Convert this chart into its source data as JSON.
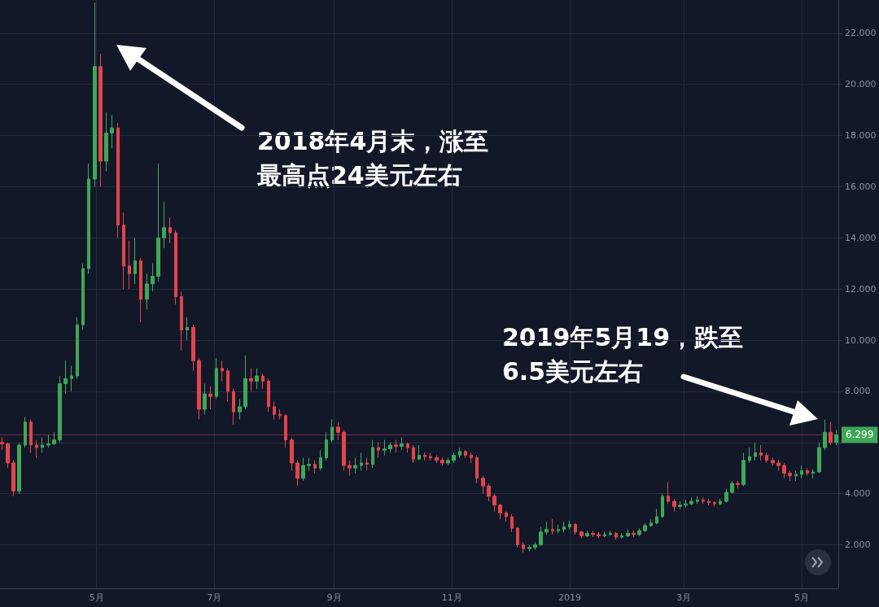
{
  "chart_data": {
    "type": "candlestick",
    "x": [
      "2018-03-13",
      "2018-03-16",
      "2018-03-19",
      "2018-03-22",
      "2018-03-25",
      "2018-03-28",
      "2018-03-31",
      "2018-04-03",
      "2018-04-06",
      "2018-04-09",
      "2018-04-12",
      "2018-04-15",
      "2018-04-18",
      "2018-04-21",
      "2018-04-24",
      "2018-04-27",
      "2018-04-30",
      "2018-05-03",
      "2018-05-06",
      "2018-05-09",
      "2018-05-12",
      "2018-05-15",
      "2018-05-18",
      "2018-05-21",
      "2018-05-24",
      "2018-05-27",
      "2018-05-30",
      "2018-06-02",
      "2018-06-05",
      "2018-06-08",
      "2018-06-11",
      "2018-06-14",
      "2018-06-17",
      "2018-06-20",
      "2018-06-23",
      "2018-06-26",
      "2018-06-29",
      "2018-07-02",
      "2018-07-05",
      "2018-07-08",
      "2018-07-11",
      "2018-07-14",
      "2018-07-17",
      "2018-07-20",
      "2018-07-23",
      "2018-07-26",
      "2018-07-29",
      "2018-08-01",
      "2018-08-04",
      "2018-08-07",
      "2018-08-10",
      "2018-08-13",
      "2018-08-16",
      "2018-08-19",
      "2018-08-22",
      "2018-08-25",
      "2018-08-28",
      "2018-08-31",
      "2018-09-03",
      "2018-09-06",
      "2018-09-09",
      "2018-09-12",
      "2018-09-15",
      "2018-09-18",
      "2018-09-21",
      "2018-09-24",
      "2018-09-27",
      "2018-09-30",
      "2018-10-03",
      "2018-10-06",
      "2018-10-09",
      "2018-10-12",
      "2018-10-15",
      "2018-10-18",
      "2018-10-21",
      "2018-10-24",
      "2018-10-27",
      "2018-10-30",
      "2018-11-02",
      "2018-11-05",
      "2018-11-08",
      "2018-11-11",
      "2018-11-14",
      "2018-11-17",
      "2018-11-20",
      "2018-11-23",
      "2018-11-26",
      "2018-11-29",
      "2018-12-02",
      "2018-12-05",
      "2018-12-08",
      "2018-12-11",
      "2018-12-14",
      "2018-12-17",
      "2018-12-20",
      "2018-12-23",
      "2018-12-26",
      "2018-12-29",
      "2019-01-01",
      "2019-01-04",
      "2019-01-07",
      "2019-01-10",
      "2019-01-13",
      "2019-01-16",
      "2019-01-19",
      "2019-01-22",
      "2019-01-25",
      "2019-01-28",
      "2019-01-31",
      "2019-02-03",
      "2019-02-06",
      "2019-02-09",
      "2019-02-12",
      "2019-02-15",
      "2019-02-18",
      "2019-02-21",
      "2019-02-24",
      "2019-02-27",
      "2019-03-02",
      "2019-03-05",
      "2019-03-08",
      "2019-03-11",
      "2019-03-14",
      "2019-03-17",
      "2019-03-20",
      "2019-03-23",
      "2019-03-26",
      "2019-03-29",
      "2019-04-01",
      "2019-04-04",
      "2019-04-07",
      "2019-04-10",
      "2019-04-13",
      "2019-04-16",
      "2019-04-19",
      "2019-04-22",
      "2019-04-25",
      "2019-04-28",
      "2019-05-01",
      "2019-05-04",
      "2019-05-07",
      "2019-05-10",
      "2019-05-13",
      "2019-05-16",
      "2019-05-19"
    ],
    "ohlc": [
      [
        6.0,
        6.2,
        5.7,
        5.95
      ],
      [
        5.95,
        6.0,
        5.0,
        5.2
      ],
      [
        5.2,
        5.3,
        3.9,
        4.1
      ],
      [
        4.1,
        6.0,
        4.0,
        5.9
      ],
      [
        5.9,
        7.0,
        5.8,
        6.8
      ],
      [
        6.8,
        6.9,
        5.6,
        5.9
      ],
      [
        5.9,
        6.1,
        5.4,
        5.8
      ],
      [
        5.8,
        6.2,
        5.6,
        5.9
      ],
      [
        5.9,
        6.3,
        5.8,
        5.95
      ],
      [
        5.95,
        6.4,
        5.9,
        6.1
      ],
      [
        6.1,
        8.6,
        6.0,
        8.3
      ],
      [
        8.3,
        9.2,
        7.9,
        8.5
      ],
      [
        8.5,
        9.0,
        8.0,
        8.6
      ],
      [
        8.6,
        10.9,
        8.5,
        10.6
      ],
      [
        10.6,
        13.0,
        10.4,
        12.8
      ],
      [
        12.8,
        16.9,
        12.6,
        16.3
      ],
      [
        16.3,
        23.2,
        16.0,
        20.7
      ],
      [
        20.7,
        21.2,
        16.0,
        17.0
      ],
      [
        17.0,
        18.9,
        16.6,
        18.1
      ],
      [
        18.1,
        18.8,
        17.5,
        18.3
      ],
      [
        18.3,
        18.5,
        14.0,
        14.5
      ],
      [
        14.5,
        15.0,
        12.0,
        12.9
      ],
      [
        12.9,
        13.9,
        12.0,
        12.6
      ],
      [
        12.6,
        14.0,
        12.2,
        13.1
      ],
      [
        13.1,
        13.2,
        10.7,
        11.6
      ],
      [
        11.6,
        12.6,
        11.2,
        12.2
      ],
      [
        12.2,
        13.0,
        11.9,
        12.5
      ],
      [
        12.5,
        16.9,
        12.3,
        14.0
      ],
      [
        14.0,
        15.4,
        13.6,
        14.4
      ],
      [
        14.4,
        14.8,
        13.8,
        14.2
      ],
      [
        14.2,
        14.3,
        11.4,
        11.7
      ],
      [
        11.7,
        11.9,
        9.6,
        10.4
      ],
      [
        10.4,
        10.9,
        10.0,
        10.5
      ],
      [
        10.5,
        10.6,
        8.8,
        9.2
      ],
      [
        9.2,
        9.3,
        6.9,
        7.3
      ],
      [
        7.3,
        8.3,
        7.1,
        7.9
      ],
      [
        7.9,
        8.2,
        7.3,
        7.8
      ],
      [
        7.8,
        9.3,
        7.7,
        8.9
      ],
      [
        8.9,
        9.2,
        8.4,
        8.8
      ],
      [
        8.8,
        8.9,
        7.6,
        8.0
      ],
      [
        8.0,
        8.1,
        6.7,
        7.2
      ],
      [
        7.2,
        7.7,
        6.9,
        7.4
      ],
      [
        7.4,
        9.4,
        7.3,
        8.5
      ],
      [
        8.5,
        8.9,
        8.0,
        8.4
      ],
      [
        8.4,
        8.9,
        8.1,
        8.6
      ],
      [
        8.6,
        8.7,
        8.1,
        8.4
      ],
      [
        8.4,
        8.5,
        7.2,
        7.4
      ],
      [
        7.4,
        7.6,
        6.9,
        7.1
      ],
      [
        7.1,
        7.3,
        6.9,
        7.05
      ],
      [
        7.05,
        7.1,
        5.8,
        6.1
      ],
      [
        6.1,
        6.2,
        4.9,
        5.2
      ],
      [
        5.2,
        5.3,
        4.3,
        4.6
      ],
      [
        4.6,
        5.4,
        4.5,
        5.1
      ],
      [
        5.1,
        5.4,
        4.9,
        5.15
      ],
      [
        5.15,
        5.3,
        4.8,
        5.0
      ],
      [
        5.0,
        5.7,
        4.9,
        5.4
      ],
      [
        5.4,
        6.4,
        5.3,
        6.1
      ],
      [
        6.1,
        6.9,
        6.0,
        6.6
      ],
      [
        6.6,
        6.8,
        6.1,
        6.4
      ],
      [
        6.4,
        6.5,
        4.9,
        5.1
      ],
      [
        5.1,
        5.3,
        4.7,
        5.0
      ],
      [
        5.0,
        5.4,
        4.8,
        5.1
      ],
      [
        5.1,
        5.6,
        4.9,
        5.2
      ],
      [
        5.2,
        5.4,
        4.9,
        5.15
      ],
      [
        5.15,
        6.1,
        5.0,
        5.8
      ],
      [
        5.8,
        6.0,
        5.4,
        5.7
      ],
      [
        5.7,
        6.1,
        5.5,
        5.75
      ],
      [
        5.75,
        6.0,
        5.6,
        5.9
      ],
      [
        5.9,
        6.1,
        5.6,
        5.85
      ],
      [
        5.85,
        6.2,
        5.7,
        5.95
      ],
      [
        5.95,
        6.0,
        5.6,
        5.8
      ],
      [
        5.8,
        5.9,
        5.2,
        5.35
      ],
      [
        5.35,
        5.9,
        5.3,
        5.5
      ],
      [
        5.5,
        5.6,
        5.3,
        5.45
      ],
      [
        5.45,
        5.6,
        5.3,
        5.4
      ],
      [
        5.4,
        5.5,
        5.2,
        5.3
      ],
      [
        5.3,
        5.4,
        5.1,
        5.2
      ],
      [
        5.2,
        5.4,
        5.1,
        5.3
      ],
      [
        5.3,
        5.6,
        5.2,
        5.5
      ],
      [
        5.5,
        5.8,
        5.4,
        5.65
      ],
      [
        5.65,
        5.7,
        5.4,
        5.5
      ],
      [
        5.5,
        5.6,
        5.2,
        5.4
      ],
      [
        5.4,
        5.5,
        4.4,
        4.6
      ],
      [
        4.6,
        4.7,
        4.0,
        4.3
      ],
      [
        4.3,
        4.4,
        3.7,
        3.9
      ],
      [
        3.9,
        4.0,
        3.3,
        3.55
      ],
      [
        3.55,
        3.6,
        3.0,
        3.25
      ],
      [
        3.25,
        3.3,
        2.9,
        3.1
      ],
      [
        3.1,
        3.2,
        2.5,
        2.65
      ],
      [
        2.65,
        2.7,
        1.9,
        2.0
      ],
      [
        2.0,
        2.1,
        1.7,
        1.85
      ],
      [
        1.85,
        2.0,
        1.75,
        1.9
      ],
      [
        1.9,
        2.1,
        1.8,
        2.0
      ],
      [
        2.0,
        2.7,
        1.95,
        2.5
      ],
      [
        2.5,
        2.9,
        2.4,
        2.6
      ],
      [
        2.6,
        3.0,
        2.4,
        2.55
      ],
      [
        2.55,
        2.8,
        2.45,
        2.6
      ],
      [
        2.6,
        2.9,
        2.5,
        2.7
      ],
      [
        2.7,
        2.95,
        2.6,
        2.8
      ],
      [
        2.8,
        2.85,
        2.4,
        2.5
      ],
      [
        2.5,
        2.55,
        2.25,
        2.35
      ],
      [
        2.35,
        2.55,
        2.3,
        2.45
      ],
      [
        2.45,
        2.55,
        2.3,
        2.4
      ],
      [
        2.4,
        2.5,
        2.25,
        2.35
      ],
      [
        2.35,
        2.5,
        2.3,
        2.4
      ],
      [
        2.4,
        2.55,
        2.35,
        2.45
      ],
      [
        2.45,
        2.5,
        2.2,
        2.3
      ],
      [
        2.3,
        2.45,
        2.25,
        2.35
      ],
      [
        2.35,
        2.6,
        2.3,
        2.45
      ],
      [
        2.45,
        2.55,
        2.3,
        2.4
      ],
      [
        2.4,
        2.65,
        2.35,
        2.55
      ],
      [
        2.55,
        2.85,
        2.5,
        2.75
      ],
      [
        2.75,
        3.0,
        2.7,
        2.85
      ],
      [
        2.85,
        3.4,
        2.8,
        3.1
      ],
      [
        3.1,
        4.0,
        3.05,
        3.9
      ],
      [
        3.9,
        4.45,
        3.6,
        3.7
      ],
      [
        3.7,
        3.8,
        3.3,
        3.5
      ],
      [
        3.5,
        3.7,
        3.4,
        3.55
      ],
      [
        3.55,
        3.75,
        3.45,
        3.6
      ],
      [
        3.6,
        3.85,
        3.55,
        3.7
      ],
      [
        3.7,
        3.9,
        3.6,
        3.75
      ],
      [
        3.75,
        3.85,
        3.6,
        3.7
      ],
      [
        3.7,
        3.8,
        3.55,
        3.65
      ],
      [
        3.65,
        3.7,
        3.5,
        3.6
      ],
      [
        3.6,
        3.8,
        3.55,
        3.7
      ],
      [
        3.7,
        4.2,
        3.65,
        4.05
      ],
      [
        4.05,
        4.5,
        4.0,
        4.4
      ],
      [
        4.4,
        4.5,
        4.2,
        4.35
      ],
      [
        4.35,
        5.6,
        4.3,
        5.3
      ],
      [
        5.3,
        5.8,
        5.2,
        5.45
      ],
      [
        5.45,
        6.0,
        5.3,
        5.6
      ],
      [
        5.6,
        5.9,
        5.3,
        5.5
      ],
      [
        5.5,
        5.6,
        5.2,
        5.3
      ],
      [
        5.3,
        5.4,
        5.1,
        5.2
      ],
      [
        5.2,
        5.3,
        4.9,
        5.1
      ],
      [
        5.1,
        5.2,
        4.6,
        4.8
      ],
      [
        4.8,
        4.9,
        4.5,
        4.7
      ],
      [
        4.7,
        4.9,
        4.5,
        4.75
      ],
      [
        4.75,
        5.1,
        4.6,
        4.9
      ],
      [
        4.9,
        5.0,
        4.7,
        4.8
      ],
      [
        4.8,
        4.95,
        4.6,
        4.85
      ],
      [
        4.85,
        6.0,
        4.8,
        5.8
      ],
      [
        5.8,
        6.9,
        5.7,
        6.4
      ],
      [
        6.4,
        6.8,
        5.9,
        6.0
      ],
      [
        6.0,
        6.5,
        5.9,
        6.3
      ]
    ],
    "colors": [
      "#e2454b",
      "#e2454b",
      "#e2454b",
      "#3fa758",
      "#3fa758",
      "#e2454b",
      "#e2454b",
      "#3fa758",
      "#3fa758",
      "#3fa758",
      "#3fa758",
      "#3fa758",
      "#3fa758",
      "#3fa758",
      "#3fa758",
      "#3fa758",
      "#3fa758",
      "#e2454b",
      "#3fa758",
      "#3fa758",
      "#e2454b",
      "#e2454b",
      "#e2454b",
      "#3fa758",
      "#e2454b",
      "#3fa758",
      "#3fa758",
      "#3fa758",
      "#3fa758",
      "#e2454b",
      "#e2454b",
      "#e2454b",
      "#3fa758",
      "#e2454b",
      "#e2454b",
      "#3fa758",
      "#e2454b",
      "#3fa758",
      "#e2454b",
      "#e2454b",
      "#e2454b",
      "#3fa758",
      "#3fa758",
      "#e2454b",
      "#3fa758",
      "#e2454b",
      "#e2454b",
      "#e2454b",
      "#e2454b",
      "#e2454b",
      "#e2454b",
      "#e2454b",
      "#3fa758",
      "#3fa758",
      "#e2454b",
      "#3fa758",
      "#3fa758",
      "#3fa758",
      "#e2454b",
      "#e2454b",
      "#e2454b",
      "#3fa758",
      "#3fa758",
      "#e2454b",
      "#3fa758",
      "#e2454b",
      "#3fa758",
      "#3fa758",
      "#e2454b",
      "#3fa758",
      "#e2454b",
      "#e2454b",
      "#3fa758",
      "#e2454b",
      "#e2454b",
      "#e2454b",
      "#e2454b",
      "#3fa758",
      "#3fa758",
      "#3fa758",
      "#e2454b",
      "#e2454b",
      "#e2454b",
      "#e2454b",
      "#e2454b",
      "#e2454b",
      "#e2454b",
      "#e2454b",
      "#e2454b",
      "#e2454b",
      "#e2454b",
      "#3fa758",
      "#3fa758",
      "#3fa758",
      "#3fa758",
      "#e2454b",
      "#3fa758",
      "#3fa758",
      "#3fa758",
      "#e2454b",
      "#e2454b",
      "#3fa758",
      "#e2454b",
      "#e2454b",
      "#3fa758",
      "#3fa758",
      "#e2454b",
      "#3fa758",
      "#3fa758",
      "#e2454b",
      "#3fa758",
      "#3fa758",
      "#3fa758",
      "#3fa758",
      "#3fa758",
      "#e2454b",
      "#e2454b",
      "#3fa758",
      "#3fa758",
      "#3fa758",
      "#3fa758",
      "#e2454b",
      "#e2454b",
      "#e2454b",
      "#3fa758",
      "#3fa758",
      "#3fa758",
      "#e2454b",
      "#3fa758",
      "#3fa758",
      "#3fa758",
      "#e2454b",
      "#e2454b",
      "#e2454b",
      "#e2454b",
      "#e2454b",
      "#e2454b",
      "#3fa758",
      "#3fa758",
      "#e2454b",
      "#3fa758",
      "#3fa758",
      "#3fa758",
      "#e2454b",
      "#3fa758"
    ],
    "xlim": [
      "2018-03-12",
      "2019-05-20"
    ],
    "xticks": [
      {
        "value": "2018-05-01",
        "label": "5月"
      },
      {
        "value": "2018-07-01",
        "label": "7月"
      },
      {
        "value": "2018-09-01",
        "label": "9月"
      },
      {
        "value": "2018-11-01",
        "label": "11月"
      },
      {
        "value": "2019-01-01",
        "label": "2019"
      },
      {
        "value": "2019-03-01",
        "label": "3月"
      },
      {
        "value": "2019-05-01",
        "label": "5月"
      }
    ],
    "ylim": [
      0.3,
      23.3
    ],
    "yticks": [
      {
        "value": 2,
        "label": "2.000"
      },
      {
        "value": 4,
        "label": "4.000"
      },
      {
        "value": 6,
        "label": null
      },
      {
        "value": 8,
        "label": "8.000"
      },
      {
        "value": 10,
        "label": "10.000"
      },
      {
        "value": 12,
        "label": "12.000"
      },
      {
        "value": 14,
        "label": "14.000"
      },
      {
        "value": 16,
        "label": "16.000"
      },
      {
        "value": 18,
        "label": "18.000"
      },
      {
        "value": 20,
        "label": "20.000"
      },
      {
        "value": 22,
        "label": "22.000"
      }
    ],
    "ref_lines": [
      {
        "axis": "y",
        "value": 6.299,
        "label": "6.299",
        "color": "#6b2d4a"
      }
    ],
    "annotations": [
      "2018年4月末，涨至",
      "最高点24美元左右",
      "2019年5月19，跌至",
      "6.5美元左右"
    ],
    "grid": true
  }
}
